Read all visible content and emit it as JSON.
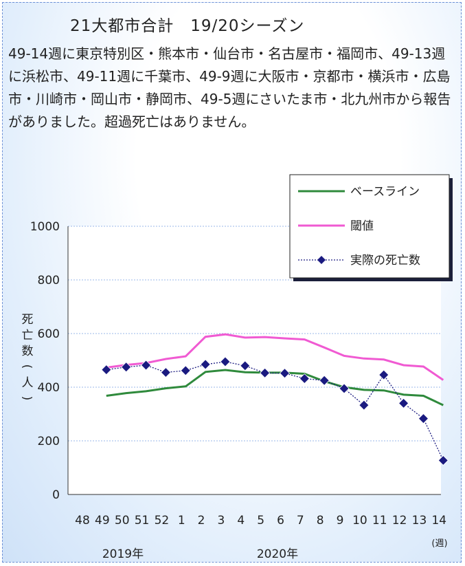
{
  "title": "21大都市合計　19/20シーズン",
  "description": "49-14週に東京特別区・熊本市・仙台市・名古屋市・福岡市、49-13週に浜松市、49-11週に千葉市、49-9週に大阪市・京都市・横浜市・広島市・川崎市・岡山市・静岡市、49-5週にさいたま市・北九州市から報告がありました。超過死亡はありません。",
  "colors": {
    "baseline": "#2f8a3c",
    "threshold": "#f05ad2",
    "actual": "#1a1a80",
    "grid": "#9ab7e8"
  },
  "chart_data": {
    "type": "line",
    "categories": [
      "48",
      "49",
      "50",
      "51",
      "52",
      "1",
      "2",
      "3",
      "4",
      "5",
      "6",
      "7",
      "8",
      "9",
      "10",
      "11",
      "12",
      "13",
      "14"
    ],
    "ylabel": "死亡数(人)",
    "x_unit": "(週)",
    "year_labels": [
      "2019年",
      "2020年"
    ],
    "ylim": [
      0,
      1000
    ],
    "yticks": [
      0,
      200,
      400,
      600,
      800,
      1000
    ],
    "grid": true,
    "legend_position": "top-right",
    "series": [
      {
        "name": "ベースライン",
        "style": "line",
        "color": "#2f8a3c",
        "values": [
          null,
          368,
          378,
          385,
          396,
          403,
          457,
          464,
          456,
          454,
          454,
          450,
          422,
          400,
          390,
          388,
          372,
          368,
          333
        ]
      },
      {
        "name": "閾値",
        "style": "line",
        "color": "#f05ad2",
        "values": [
          null,
          473,
          483,
          490,
          505,
          515,
          588,
          597,
          585,
          587,
          582,
          578,
          548,
          517,
          507,
          503,
          482,
          477,
          427
        ]
      },
      {
        "name": "実際の死亡数",
        "style": "dotted-diamond",
        "color": "#1a1a80",
        "values": [
          null,
          465,
          475,
          482,
          455,
          462,
          485,
          495,
          480,
          453,
          452,
          432,
          425,
          395,
          333,
          446,
          340,
          283,
          127
        ]
      }
    ]
  }
}
